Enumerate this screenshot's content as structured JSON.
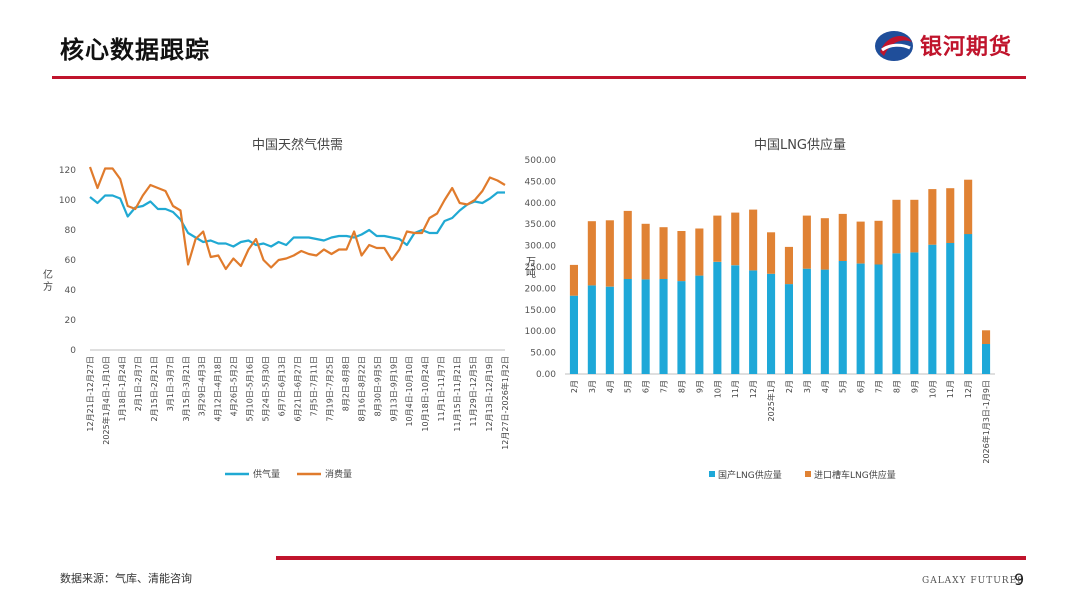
{
  "header": {
    "title": "核心数据跟踪",
    "brand": "银河期货",
    "colors": {
      "accent": "#c0142c",
      "logo_blue": "#1f4e9a"
    }
  },
  "footer": {
    "source": "数据来源：气库、清能咨询",
    "brand_en": "GALAXY FUTURES",
    "page": "9"
  },
  "chart_data": [
    {
      "type": "line",
      "title": "中国天然气供需",
      "ylabel": "亿方",
      "ylim": [
        0,
        120
      ],
      "yticks": [
        0,
        20,
        40,
        60,
        80,
        100,
        120
      ],
      "x_tick_labels": [
        "12月21日-12月27日",
        "2025年1月4日-1月10日",
        "1月18日-1月24日",
        "2月1日-2月7日",
        "2月15日-2月21日",
        "3月1日-3月7日",
        "3月15日-3月21日",
        "3月29日-4月3日",
        "4月12日-4月18日",
        "4月26日-5月2日",
        "5月10日-5月16日",
        "5月24日-5月30日",
        "6月7日-6月13日",
        "6月21日-6月27日",
        "7月5日-7月11日",
        "7月19日-7月25日",
        "8月2日-8月8日",
        "8月16日-8月22日",
        "8月30日-9月5日",
        "9月13日-9月19日",
        "10月4日-10月10日",
        "10月18日-10月24日",
        "11月1日-11月7日",
        "11月15日-11月21日",
        "11月29日-12月5日",
        "12月13日-12月19日",
        "12月27日-2026年1月2日"
      ],
      "legend_position": "bottom",
      "series": [
        {
          "name": "供气量",
          "color": "#20a9d3",
          "values": [
            102,
            98,
            103,
            103,
            101,
            89,
            95,
            96,
            99,
            94,
            94,
            92,
            87,
            78,
            75,
            72,
            73,
            71,
            71,
            69,
            72,
            73,
            70,
            71,
            69,
            72,
            70,
            75,
            75,
            75,
            74,
            73,
            75,
            76,
            76,
            75,
            77,
            80,
            76,
            76,
            75,
            74,
            70,
            78,
            80,
            78,
            78,
            86,
            88,
            93,
            97,
            99,
            98,
            101,
            105,
            105
          ]
        },
        {
          "name": "消费量",
          "color": "#e07b2c",
          "values": [
            122,
            108,
            121,
            121,
            114,
            96,
            94,
            103,
            110,
            108,
            106,
            96,
            93,
            57,
            74,
            79,
            62,
            63,
            54,
            61,
            56,
            67,
            74,
            60,
            55,
            60,
            61,
            63,
            66,
            64,
            63,
            67,
            64,
            67,
            67,
            79,
            63,
            70,
            68,
            68,
            60,
            67,
            79,
            78,
            78,
            88,
            91,
            100,
            108,
            98,
            97,
            100,
            106,
            115,
            113,
            110
          ]
        }
      ]
    },
    {
      "type": "bar",
      "stacked": true,
      "title": "中国LNG供应量",
      "ylabel": "万吨",
      "ylim": [
        0,
        500
      ],
      "yticks": [
        "0.00",
        "50.00",
        "100.00",
        "150.00",
        "200.00",
        "250.00",
        "300.00",
        "350.00",
        "400.00",
        "450.00",
        "500.00"
      ],
      "categories": [
        "2月",
        "3月",
        "4月",
        "5月",
        "6月",
        "7月",
        "8月",
        "9月",
        "10月",
        "11月",
        "12月",
        "2025年1月",
        "2月",
        "3月",
        "4月",
        "5月",
        "6月",
        "7月",
        "8月",
        "9月",
        "10月",
        "11月",
        "12月",
        "2026年1月3日-1月9日"
      ],
      "legend_position": "bottom",
      "series": [
        {
          "name": "国产LNG供应量",
          "color": "#1ea8d8",
          "values": [
            183,
            207,
            204,
            222,
            221,
            222,
            217,
            230,
            262,
            254,
            242,
            234,
            210,
            246,
            244,
            264,
            258,
            256,
            282,
            284,
            302,
            306,
            327,
            70
          ]
        },
        {
          "name": "进口槽车LNG供应量",
          "color": "#e08234",
          "values": [
            72,
            150,
            155,
            159,
            130,
            121,
            117,
            110,
            108,
            123,
            142,
            97,
            87,
            124,
            120,
            110,
            98,
            102,
            125,
            123,
            130,
            128,
            127,
            32
          ]
        }
      ]
    }
  ]
}
